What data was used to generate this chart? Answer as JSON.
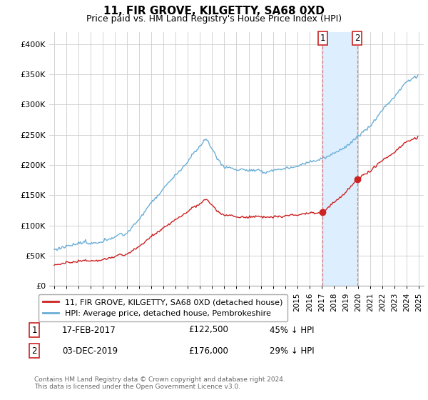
{
  "title": "11, FIR GROVE, KILGETTY, SA68 0XD",
  "subtitle": "Price paid vs. HM Land Registry's House Price Index (HPI)",
  "ylim": [
    0,
    420000
  ],
  "yticks": [
    0,
    50000,
    100000,
    150000,
    200000,
    250000,
    300000,
    350000,
    400000
  ],
  "ytick_labels": [
    "£0",
    "£50K",
    "£100K",
    "£150K",
    "£200K",
    "£250K",
    "£300K",
    "£350K",
    "£400K"
  ],
  "hpi_color": "#6baed6",
  "price_color": "#cc2222",
  "marker1_label": "17-FEB-2017",
  "marker1_price": 122500,
  "marker1_price_str": "£122,500",
  "marker1_pct": "45% ↓ HPI",
  "marker2_label": "03-DEC-2019",
  "marker2_price": 176000,
  "marker2_price_str": "£176,000",
  "marker2_pct": "29% ↓ HPI",
  "legend_line1": "11, FIR GROVE, KILGETTY, SA68 0XD (detached house)",
  "legend_line2": "HPI: Average price, detached house, Pembrokeshire",
  "footer": "Contains HM Land Registry data © Crown copyright and database right 2024.\nThis data is licensed under the Open Government Licence v3.0.",
  "shaded_region_color": "#ddeeff",
  "vline_color": "#dd6666",
  "grid_color": "#cccccc",
  "bg_color": "#f0f4fa"
}
